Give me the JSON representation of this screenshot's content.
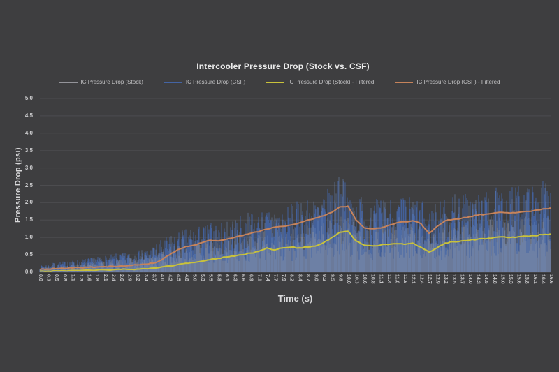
{
  "page": {
    "background": "#3e3e40",
    "grid_color": "#4c4c4f",
    "axis_line_color": "#323234",
    "title_color": "#ebebeb",
    "tick_label_color": "#c9c9cb"
  },
  "chart_data": {
    "type": "line",
    "title": "Intercooler Pressure Drop (Stock vs. CSF)",
    "xlabel": "Time (s)",
    "ylabel": "Pressure Drop (psi)",
    "ylim": [
      0.0,
      5.0
    ],
    "ytick_interval": 0.5,
    "yticks": [
      "0.0",
      "0.5",
      "1.0",
      "1.5",
      "2.0",
      "2.5",
      "3.0",
      "3.5",
      "4.0",
      "4.5",
      "5.0"
    ],
    "grid": "horizontal",
    "legend_position": "top",
    "categories": [
      "0.0",
      "0.3",
      "0.5",
      "0.8",
      "1.1",
      "1.3",
      "1.6",
      "1.8",
      "2.1",
      "2.4",
      "2.6",
      "2.9",
      "3.2",
      "3.4",
      "3.7",
      "4.0",
      "4.2",
      "4.5",
      "4.8",
      "5.0",
      "5.3",
      "5.5",
      "5.8",
      "6.1",
      "6.3",
      "6.6",
      "6.9",
      "7.1",
      "7.4",
      "7.7",
      "7.9",
      "8.2",
      "8.4",
      "8.7",
      "9.0",
      "9.2",
      "9.5",
      "9.8",
      "10.0",
      "10.3",
      "10.6",
      "10.8",
      "11.1",
      "11.4",
      "11.6",
      "11.9",
      "12.1",
      "12.4",
      "12.7",
      "12.9",
      "13.2",
      "13.5",
      "13.7",
      "14.0",
      "14.3",
      "14.5",
      "14.8",
      "15.0",
      "15.3",
      "15.6",
      "15.8",
      "16.1",
      "16.4",
      "16.6"
    ],
    "series": [
      {
        "name": "IC Pressure Drop (Stock)",
        "style": "raw-noisy",
        "values_are": "upper_envelope_of_noisy_signal",
        "color": "#94949a",
        "values": [
          0.15,
          0.17,
          0.19,
          0.21,
          0.23,
          0.25,
          0.28,
          0.3,
          0.33,
          0.36,
          0.38,
          0.4,
          0.43,
          0.46,
          0.52,
          0.62,
          0.68,
          0.75,
          0.82,
          0.85,
          0.9,
          0.95,
          0.92,
          0.98,
          1.02,
          1.06,
          1.12,
          1.15,
          1.22,
          1.25,
          1.22,
          1.28,
          1.32,
          1.38,
          1.4,
          1.45,
          1.55,
          1.65,
          1.58,
          1.45,
          1.4,
          1.38,
          1.42,
          1.42,
          1.45,
          1.42,
          1.45,
          1.35,
          1.25,
          1.32,
          1.42,
          1.45,
          1.48,
          1.5,
          1.52,
          1.52,
          1.58,
          1.58,
          1.58,
          1.62,
          1.6,
          1.65,
          1.7,
          1.68
        ]
      },
      {
        "name": "IC Pressure Drop (CSF)",
        "style": "raw-noisy",
        "values_are": "upper_envelope_of_noisy_signal",
        "color": "#4464a4",
        "values": [
          0.22,
          0.25,
          0.28,
          0.32,
          0.34,
          0.38,
          0.42,
          0.44,
          0.48,
          0.52,
          0.56,
          0.58,
          0.62,
          0.68,
          0.78,
          0.95,
          1.05,
          1.15,
          1.25,
          1.3,
          1.38,
          1.45,
          1.4,
          1.5,
          1.58,
          1.65,
          1.75,
          1.78,
          1.88,
          1.95,
          1.9,
          2.0,
          2.05,
          2.15,
          2.2,
          2.3,
          2.5,
          2.8,
          2.55,
          2.25,
          2.15,
          2.1,
          2.15,
          2.2,
          2.25,
          2.2,
          2.25,
          2.1,
          1.9,
          2.0,
          2.2,
          2.25,
          2.3,
          2.35,
          2.3,
          2.35,
          2.45,
          2.4,
          2.45,
          2.55,
          2.5,
          2.55,
          2.65,
          2.6
        ]
      },
      {
        "name": "IC Pressure Drop (Stock) - Filtered",
        "style": "smooth",
        "color": "#c9c23b",
        "values": [
          0.03,
          0.03,
          0.04,
          0.04,
          0.05,
          0.05,
          0.06,
          0.06,
          0.07,
          0.07,
          0.08,
          0.08,
          0.09,
          0.1,
          0.12,
          0.15,
          0.18,
          0.22,
          0.26,
          0.28,
          0.32,
          0.36,
          0.4,
          0.44,
          0.46,
          0.5,
          0.55,
          0.6,
          0.7,
          0.64,
          0.7,
          0.72,
          0.7,
          0.72,
          0.75,
          0.85,
          1.0,
          1.15,
          1.18,
          0.9,
          0.78,
          0.76,
          0.78,
          0.8,
          0.82,
          0.8,
          0.84,
          0.72,
          0.58,
          0.7,
          0.84,
          0.88,
          0.9,
          0.92,
          0.95,
          0.96,
          1.0,
          1.02,
          1.0,
          1.02,
          1.04,
          1.05,
          1.08,
          1.1
        ]
      },
      {
        "name": "IC Pressure Drop (CSF) - Filtered",
        "style": "smooth",
        "color": "#c6835b",
        "values": [
          0.08,
          0.09,
          0.1,
          0.11,
          0.12,
          0.13,
          0.14,
          0.15,
          0.16,
          0.17,
          0.18,
          0.19,
          0.21,
          0.23,
          0.26,
          0.35,
          0.5,
          0.65,
          0.74,
          0.78,
          0.85,
          0.92,
          0.9,
          0.95,
          1.0,
          1.05,
          1.12,
          1.16,
          1.24,
          1.3,
          1.32,
          1.36,
          1.42,
          1.5,
          1.56,
          1.62,
          1.72,
          1.88,
          1.9,
          1.5,
          1.28,
          1.25,
          1.27,
          1.35,
          1.42,
          1.45,
          1.48,
          1.4,
          1.12,
          1.32,
          1.48,
          1.52,
          1.55,
          1.6,
          1.64,
          1.67,
          1.7,
          1.72,
          1.7,
          1.72,
          1.75,
          1.78,
          1.82,
          1.85
        ]
      }
    ]
  }
}
